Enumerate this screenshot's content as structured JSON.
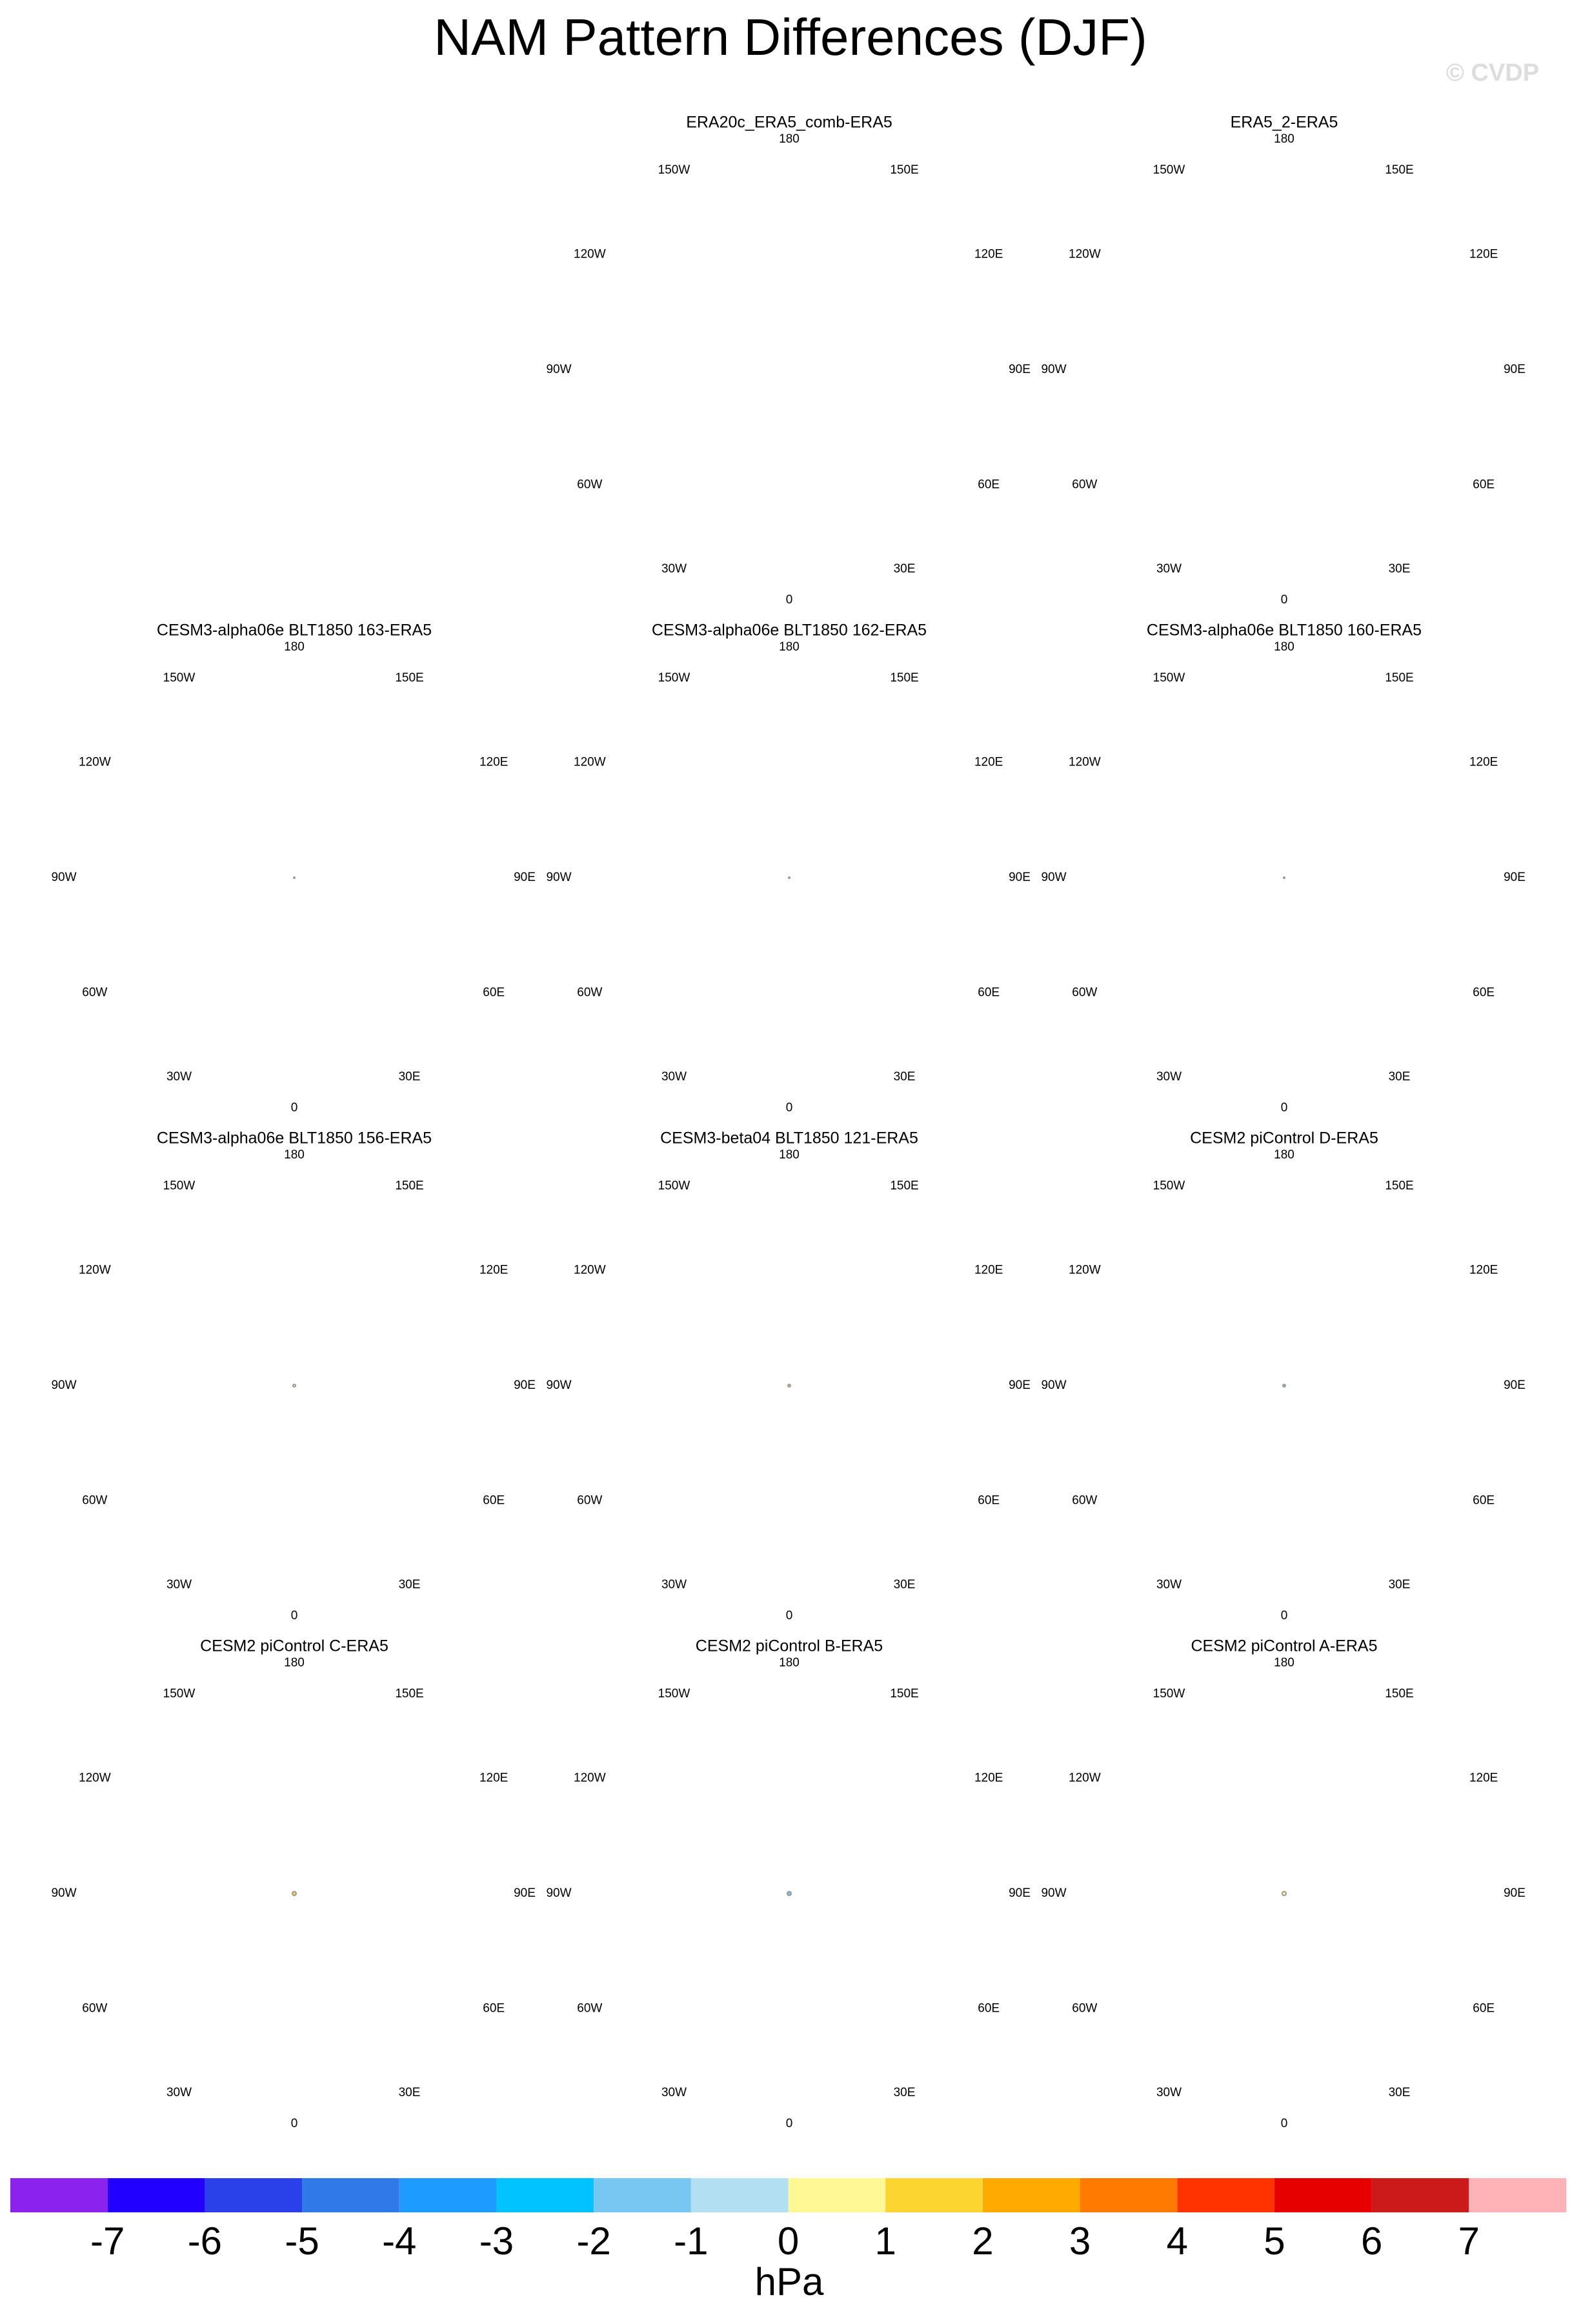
{
  "title": "NAM Pattern Differences (DJF)",
  "watermark": "© CVDP",
  "panels": [
    {
      "title": "ERA20c_ERA5_comb-ERA5"
    },
    {
      "title": "ERA5_2-ERA5"
    },
    {
      "title": "CESM3-alpha06e BLT1850 163-ERA5"
    },
    {
      "title": "CESM3-alpha06e BLT1850 162-ERA5"
    },
    {
      "title": "CESM3-alpha06e BLT1850 160-ERA5"
    },
    {
      "title": "CESM3-alpha06e BLT1850 156-ERA5"
    },
    {
      "title": "CESM3-beta04 BLT1850 121-ERA5"
    },
    {
      "title": "CESM2 piControl D-ERA5"
    },
    {
      "title": "CESM2 piControl C-ERA5"
    },
    {
      "title": "CESM2 piControl B-ERA5"
    },
    {
      "title": "CESM2 piControl A-ERA5"
    }
  ],
  "lon_labels": [
    "180",
    "150E",
    "120E",
    "90E",
    "60E",
    "30E",
    "0",
    "30W",
    "60W",
    "90W",
    "120W",
    "150W"
  ],
  "colorbar": {
    "colors": [
      "#8b22ee",
      "#2200ff",
      "#2a40e8",
      "#2f7ae8",
      "#1e9bff",
      "#00c3ff",
      "#77c7f2",
      "#b2e0f2",
      "#fff894",
      "#fdd531",
      "#ffaa00",
      "#ff7a00",
      "#ff3300",
      "#e60000",
      "#cc1a1a",
      "#ffb3b6"
    ],
    "ticks": [
      -7,
      -6,
      -5,
      -4,
      -3,
      -2,
      -1,
      0,
      1,
      2,
      3,
      4,
      5,
      6,
      7
    ],
    "label": "hPa"
  }
}
